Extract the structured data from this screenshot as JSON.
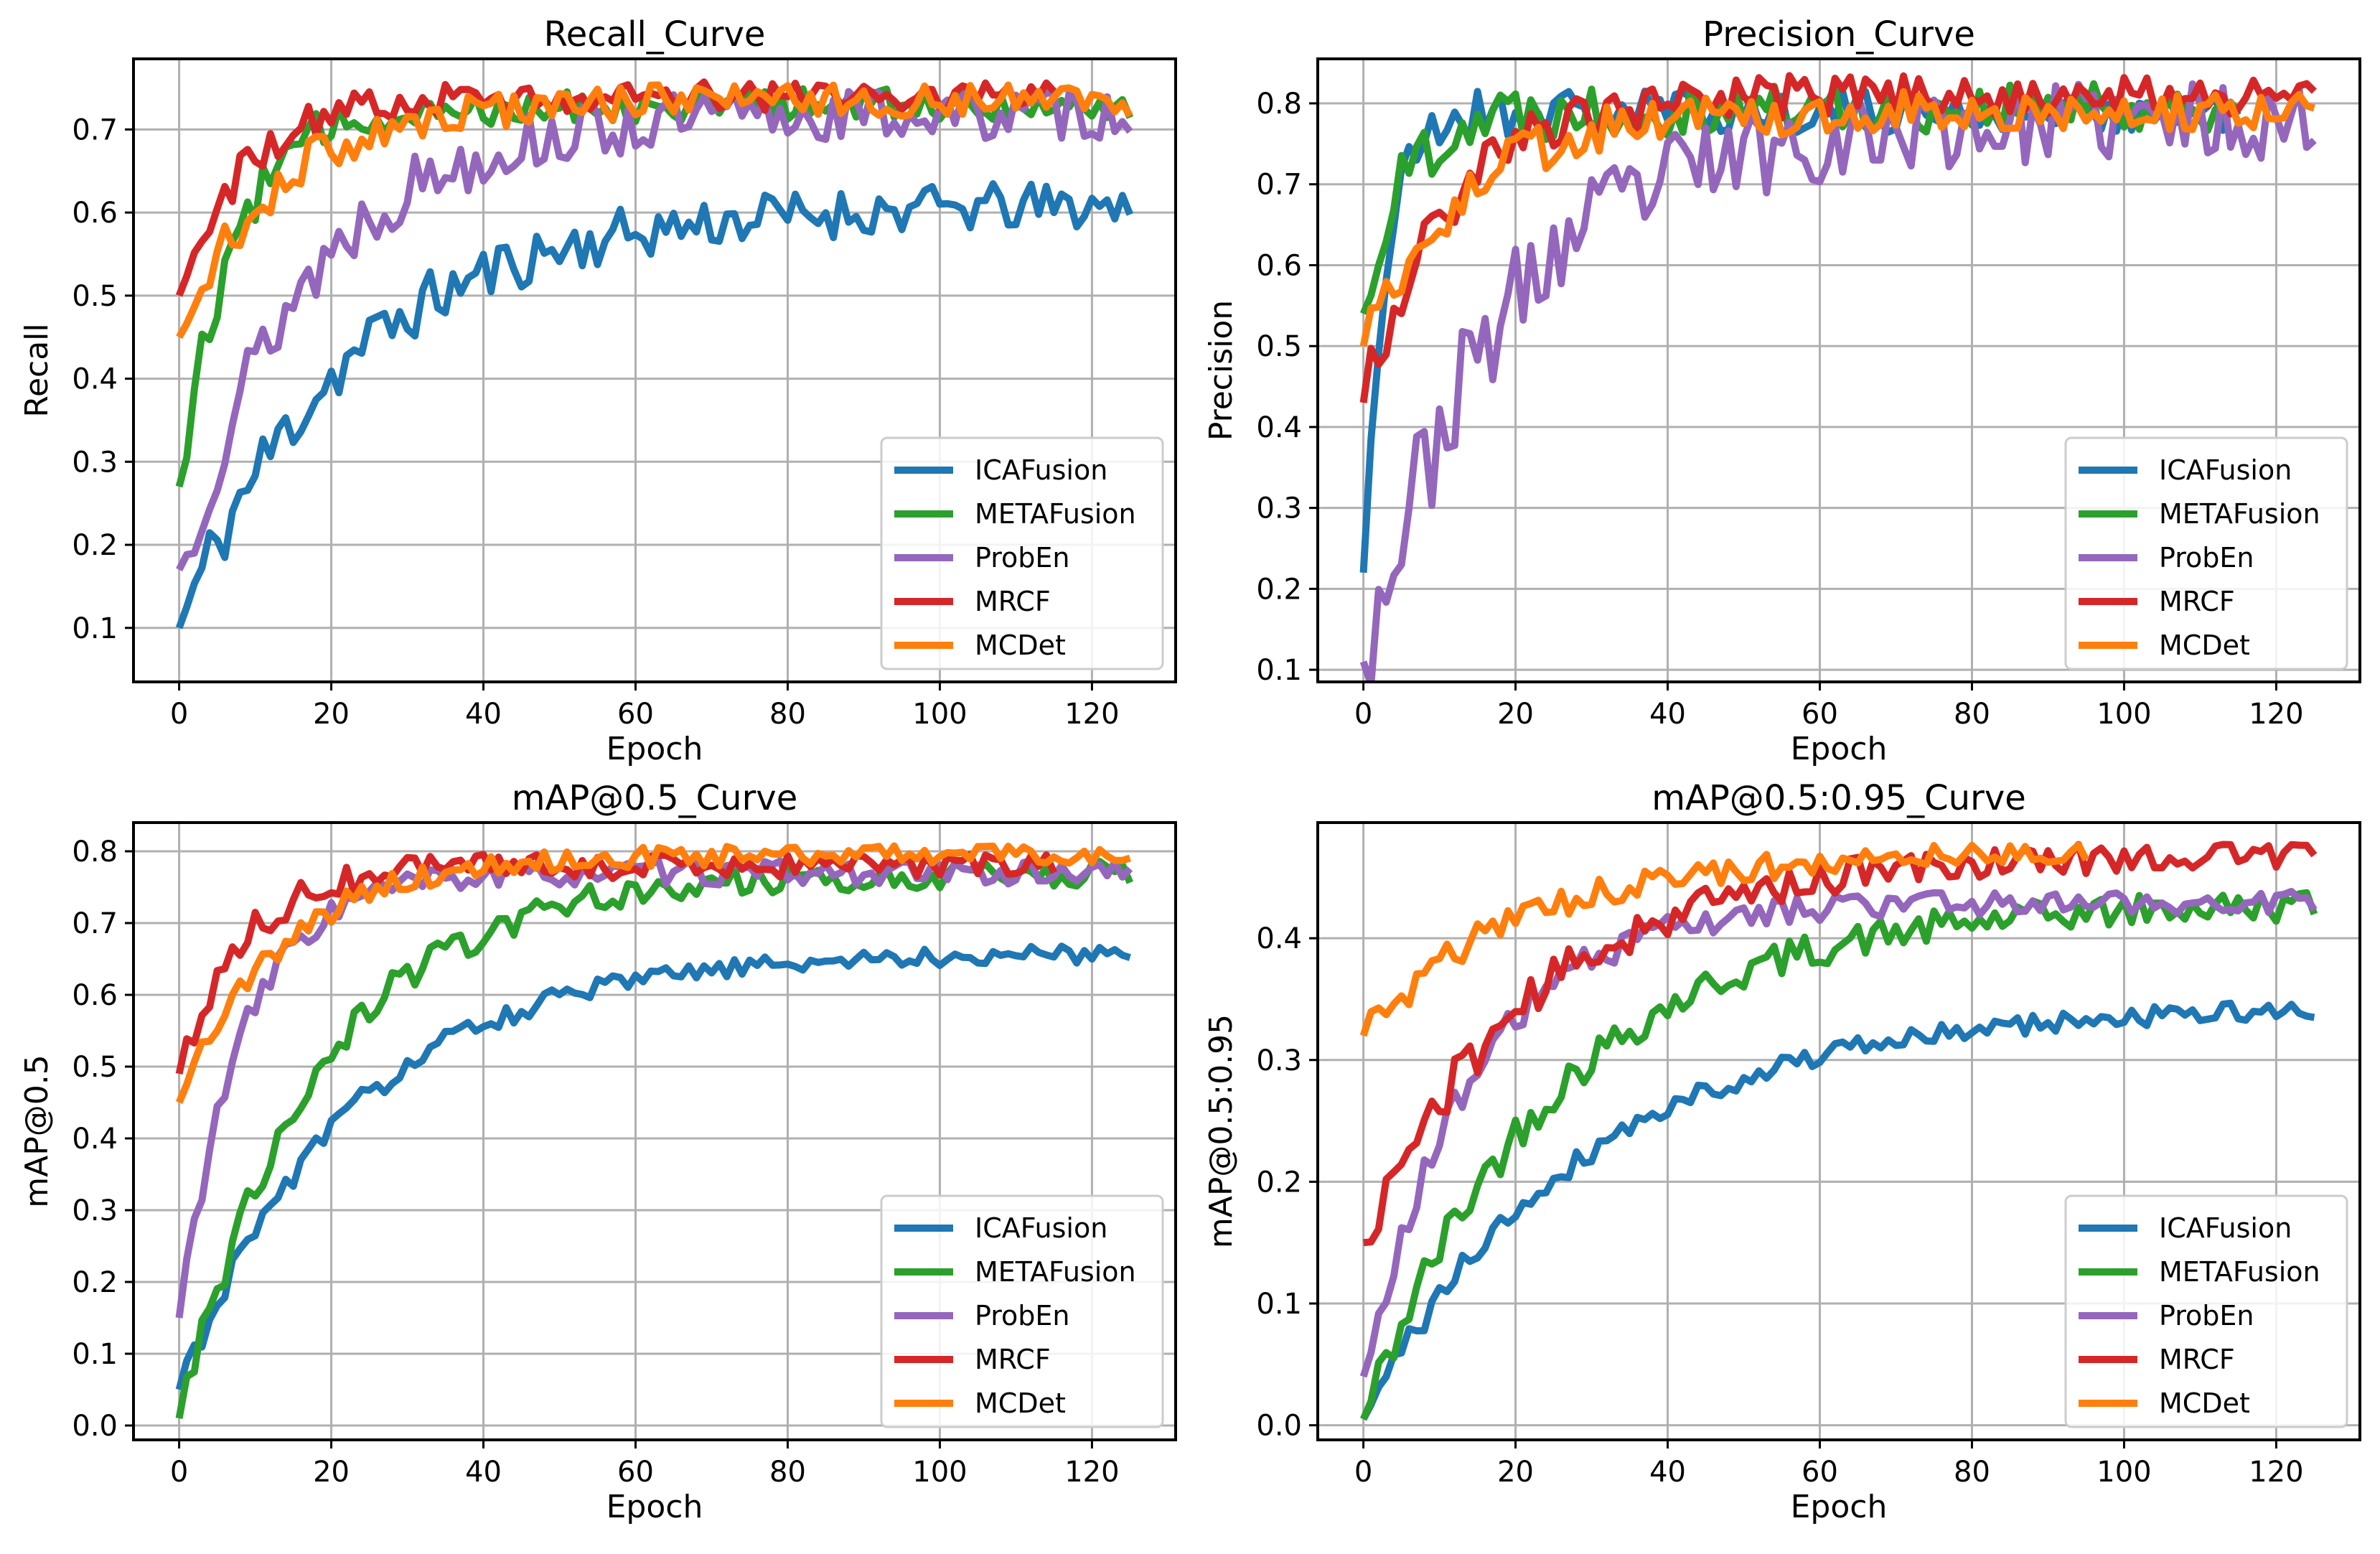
{
  "chart_data": [
    {
      "type": "line",
      "title": "Recall_Curve",
      "xlabel": "Epoch",
      "ylabel": "Recall",
      "xlim": [
        -6,
        131
      ],
      "ylim": [
        0.035,
        0.785
      ],
      "xticks": [
        0,
        20,
        40,
        60,
        80,
        100,
        120
      ],
      "yticks": [
        0.1,
        0.2,
        0.3,
        0.4,
        0.5,
        0.6,
        0.7
      ],
      "ytick_decimals": 1,
      "grid": true,
      "legend_position": "lower right",
      "series": [
        {
          "name": "ICAFusion",
          "color": "#1f77b4",
          "shape": "log",
          "start": 0.1,
          "end": 0.61,
          "rate": 0.05,
          "noise": 0.018,
          "last": 125,
          "seed": 11
        },
        {
          "name": "METAFusion",
          "color": "#2ca02c",
          "shape": "exp",
          "start": 0.27,
          "end": 0.73,
          "rate": 0.14,
          "noise": 0.012,
          "last": 125,
          "seed": 12
        },
        {
          "name": "ProbEn",
          "color": "#9467bd",
          "shape": "exp",
          "start": 0.17,
          "end": 0.72,
          "rate": 0.06,
          "noise": 0.02,
          "last": 125,
          "seed": 13
        },
        {
          "name": "MRCF",
          "color": "#d62728",
          "shape": "exp",
          "start": 0.5,
          "end": 0.74,
          "rate": 0.12,
          "noise": 0.01,
          "last": 115,
          "seed": 14
        },
        {
          "name": "MCDet",
          "color": "#ff7f0e",
          "shape": "exp",
          "start": 0.45,
          "end": 0.735,
          "rate": 0.08,
          "noise": 0.012,
          "last": 125,
          "seed": 15
        }
      ]
    },
    {
      "type": "line",
      "title": "Precision_Curve",
      "xlabel": "Epoch",
      "ylabel": "Precision",
      "xlim": [
        -6,
        131
      ],
      "ylim": [
        0.085,
        0.855
      ],
      "xticks": [
        0,
        20,
        40,
        60,
        80,
        100,
        120
      ],
      "yticks": [
        0.1,
        0.2,
        0.3,
        0.4,
        0.5,
        0.6,
        0.7,
        0.8
      ],
      "ytick_decimals": 1,
      "grid": true,
      "legend_position": "lower right",
      "series": [
        {
          "name": "ICAFusion",
          "color": "#1f77b4",
          "shape": "exp",
          "start": 0.22,
          "end": 0.79,
          "rate": 0.35,
          "noise": 0.015,
          "last": 115,
          "seed": 21
        },
        {
          "name": "METAFusion",
          "color": "#2ca02c",
          "shape": "exp",
          "start": 0.54,
          "end": 0.795,
          "rate": 0.2,
          "noise": 0.018,
          "last": 115,
          "seed": 22
        },
        {
          "name": "ProbEn",
          "color": "#9467bd",
          "shape": "exp",
          "start": 0.11,
          "end": 0.78,
          "rate": 0.055,
          "noise": 0.03,
          "last": 125,
          "seed": 23
        },
        {
          "name": "MRCF",
          "color": "#d62728",
          "shape": "exp",
          "start": 0.43,
          "end": 0.81,
          "rate": 0.09,
          "noise": 0.015,
          "last": 125,
          "seed": 24
        },
        {
          "name": "MCDet",
          "color": "#ff7f0e",
          "shape": "exp",
          "start": 0.5,
          "end": 0.79,
          "rate": 0.08,
          "noise": 0.015,
          "last": 125,
          "seed": 25
        }
      ]
    },
    {
      "type": "line",
      "title": "mAP@0.5_Curve",
      "xlabel": "Epoch",
      "ylabel": "mAP@0.5",
      "xlim": [
        -6,
        131
      ],
      "ylim": [
        -0.02,
        0.84
      ],
      "xticks": [
        0,
        20,
        40,
        60,
        80,
        100,
        120
      ],
      "yticks": [
        0.0,
        0.1,
        0.2,
        0.3,
        0.4,
        0.5,
        0.6,
        0.7,
        0.8
      ],
      "ytick_decimals": 1,
      "grid": true,
      "legend_position": "lower right",
      "series": [
        {
          "name": "ICAFusion",
          "color": "#1f77b4",
          "shape": "exp",
          "start": 0.05,
          "end": 0.66,
          "rate": 0.045,
          "noise": 0.008,
          "last": 125,
          "seed": 31
        },
        {
          "name": "METAFusion",
          "color": "#2ca02c",
          "shape": "exp",
          "start": 0.01,
          "end": 0.77,
          "rate": 0.055,
          "noise": 0.012,
          "last": 125,
          "seed": 32
        },
        {
          "name": "ProbEn",
          "color": "#9467bd",
          "shape": "exp",
          "start": 0.15,
          "end": 0.77,
          "rate": 0.12,
          "noise": 0.01,
          "last": 125,
          "seed": 33
        },
        {
          "name": "MRCF",
          "color": "#d62728",
          "shape": "exp",
          "start": 0.49,
          "end": 0.78,
          "rate": 0.12,
          "noise": 0.01,
          "last": 115,
          "seed": 34
        },
        {
          "name": "MCDet",
          "color": "#ff7f0e",
          "shape": "exp",
          "start": 0.45,
          "end": 0.795,
          "rate": 0.075,
          "noise": 0.008,
          "last": 125,
          "seed": 35
        }
      ]
    },
    {
      "type": "line",
      "title": "mAP@0.5:0.95_Curve",
      "xlabel": "Epoch",
      "ylabel": "mAP@0.5:0.95",
      "xlim": [
        -6,
        131
      ],
      "ylim": [
        -0.012,
        0.495
      ],
      "xticks": [
        0,
        20,
        40,
        60,
        80,
        100,
        120
      ],
      "yticks": [
        0.0,
        0.1,
        0.2,
        0.3,
        0.4
      ],
      "ytick_decimals": 1,
      "grid": true,
      "legend_position": "lower right",
      "series": [
        {
          "name": "ICAFusion",
          "color": "#1f77b4",
          "shape": "exp",
          "start": 0.005,
          "end": 0.345,
          "rate": 0.035,
          "noise": 0.005,
          "last": 125,
          "seed": 41
        },
        {
          "name": "METAFusion",
          "color": "#2ca02c",
          "shape": "exp",
          "start": 0.005,
          "end": 0.43,
          "rate": 0.04,
          "noise": 0.008,
          "last": 125,
          "seed": 42
        },
        {
          "name": "ProbEn",
          "color": "#9467bd",
          "shape": "exp",
          "start": 0.04,
          "end": 0.43,
          "rate": 0.07,
          "noise": 0.006,
          "last": 125,
          "seed": 43
        },
        {
          "name": "MRCF",
          "color": "#d62728",
          "shape": "exp",
          "start": 0.15,
          "end": 0.47,
          "rate": 0.045,
          "noise": 0.008,
          "last": 125,
          "seed": 44
        },
        {
          "name": "MCDet",
          "color": "#ff7f0e",
          "shape": "exp",
          "start": 0.32,
          "end": 0.47,
          "rate": 0.05,
          "noise": 0.006,
          "last": 95,
          "seed": 45
        }
      ]
    }
  ]
}
